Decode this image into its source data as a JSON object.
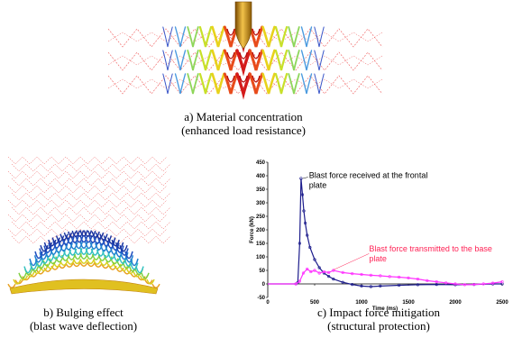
{
  "captions": {
    "a": {
      "line1": "a) Material concentration",
      "line2": "(enhanced load resistance)"
    },
    "b": {
      "line1": "b) Bulging effect",
      "line2": "(blast wave deflection)"
    },
    "c": {
      "line1": "c) Impact force mitigation",
      "line2": "(structural protection)"
    }
  },
  "colors": {
    "nozzle": "#c8860a",
    "frontal_series": "#1c1c8c",
    "base_series": "#ff33ff",
    "annotation_base": "#ff2255",
    "lattice_faint": "#ee5555"
  },
  "chart_data": {
    "type": "line",
    "title": "",
    "xlabel": "Time (ms)",
    "ylabel": "Force (kN)",
    "xlim": [
      0,
      2500
    ],
    "ylim": [
      -50,
      450
    ],
    "x_ticks": [
      0,
      500,
      1000,
      1500,
      2000,
      2500
    ],
    "y_ticks": [
      -50,
      0,
      50,
      100,
      150,
      200,
      250,
      300,
      350,
      400,
      450
    ],
    "grid": false,
    "series": [
      {
        "name": "",
        "color": "#1c1c8c",
        "x": [
          0,
          300,
          320,
          340,
          355,
          370,
          385,
          400,
          420,
          450,
          500,
          550,
          600,
          650,
          700,
          800,
          900,
          1000,
          1100,
          1200,
          1400,
          1600,
          1800,
          2000,
          2200,
          2400,
          2500
        ],
        "y": [
          0,
          0,
          5,
          150,
          390,
          330,
          270,
          225,
          180,
          135,
          90,
          60,
          40,
          28,
          18,
          6,
          -2,
          -8,
          -10,
          -8,
          -5,
          -3,
          -2,
          -3,
          -2,
          0,
          0
        ]
      },
      {
        "name": "",
        "color": "#ff33ff",
        "x": [
          0,
          300,
          340,
          380,
          420,
          460,
          500,
          550,
          600,
          650,
          700,
          800,
          900,
          1000,
          1100,
          1200,
          1300,
          1400,
          1500,
          1600,
          1700,
          1800,
          1900,
          2000,
          2100,
          2200,
          2300,
          2400,
          2500
        ],
        "y": [
          0,
          0,
          10,
          40,
          55,
          45,
          50,
          40,
          45,
          42,
          50,
          42,
          38,
          35,
          32,
          30,
          27,
          25,
          22,
          18,
          12,
          8,
          4,
          0,
          -3,
          -2,
          0,
          3,
          8
        ]
      }
    ],
    "annotations": [
      {
        "text_line1": "Blast force received at the frontal",
        "text_line2": "plate",
        "color": "#000000"
      },
      {
        "text_line1": "Blast force transmitted to the base",
        "text_line2": "plate",
        "color": "#ff2255"
      }
    ]
  }
}
